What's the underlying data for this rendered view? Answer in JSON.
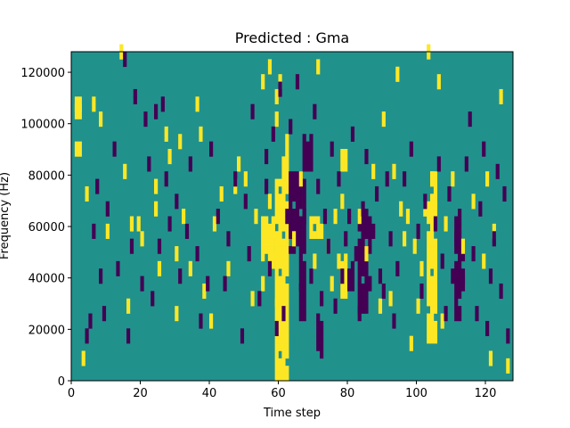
{
  "chart_data": {
    "type": "heatmap",
    "title": "Predicted : Gma",
    "xlabel": "Time step",
    "ylabel": "Frequency (Hz)",
    "xlim": [
      0,
      128
    ],
    "ylim": [
      0,
      128000
    ],
    "x_ticks": [
      0,
      20,
      40,
      60,
      80,
      100,
      120
    ],
    "y_ticks": [
      0,
      20000,
      40000,
      60000,
      80000,
      100000,
      120000
    ],
    "grid": false,
    "legend": "none",
    "n_time_steps": 128,
    "n_freq_bins": 44,
    "colors": {
      "background": "#21918c",
      "low": "#440154",
      "high": "#fde725"
    },
    "cells": {
      "high": [
        [
          1,
          31
        ],
        [
          2,
          31
        ],
        [
          1,
          36
        ],
        [
          2,
          36
        ],
        [
          1,
          37
        ],
        [
          2,
          37
        ],
        [
          3,
          3
        ],
        [
          4,
          25
        ],
        [
          6,
          37
        ],
        [
          8,
          35
        ],
        [
          10,
          20
        ],
        [
          14,
          44
        ],
        [
          15,
          28
        ],
        [
          16,
          10
        ],
        [
          17,
          21
        ],
        [
          19,
          21
        ],
        [
          20,
          19
        ],
        [
          24,
          26
        ],
        [
          24,
          23
        ],
        [
          25,
          15
        ],
        [
          27,
          33
        ],
        [
          28,
          30
        ],
        [
          30,
          9
        ],
        [
          30,
          17
        ],
        [
          31,
          32
        ],
        [
          32,
          22
        ],
        [
          34,
          15
        ],
        [
          36,
          37
        ],
        [
          37,
          33
        ],
        [
          38,
          12
        ],
        [
          40,
          8
        ],
        [
          41,
          21
        ],
        [
          43,
          25
        ],
        [
          45,
          15
        ],
        [
          47,
          26
        ],
        [
          48,
          29
        ],
        [
          50,
          27
        ],
        [
          52,
          11
        ],
        [
          53,
          22
        ],
        [
          55,
          13
        ],
        [
          55,
          40
        ],
        [
          56,
          21
        ],
        [
          57,
          24
        ],
        [
          57,
          42
        ],
        [
          58,
          20
        ],
        [
          58,
          16
        ],
        [
          59,
          10
        ],
        [
          59,
          35
        ],
        [
          59,
          38
        ],
        [
          60,
          16
        ],
        [
          60,
          40
        ],
        [
          62,
          32
        ],
        [
          64,
          19
        ],
        [
          66,
          27
        ],
        [
          70,
          16
        ],
        [
          71,
          42
        ],
        [
          72,
          20
        ],
        [
          74,
          18
        ],
        [
          75,
          13
        ],
        [
          76,
          22
        ],
        [
          77,
          16
        ],
        [
          78,
          24
        ],
        [
          83,
          22
        ],
        [
          85,
          17
        ],
        [
          87,
          28
        ],
        [
          89,
          10
        ],
        [
          90,
          35
        ],
        [
          92,
          11
        ],
        [
          93,
          28
        ],
        [
          94,
          41
        ],
        [
          95,
          23
        ],
        [
          96,
          19
        ],
        [
          97,
          22
        ],
        [
          98,
          5
        ],
        [
          99,
          18
        ],
        [
          100,
          10
        ],
        [
          101,
          15
        ],
        [
          102,
          23
        ],
        [
          103,
          44
        ],
        [
          104,
          27
        ],
        [
          106,
          40
        ],
        [
          107,
          8
        ],
        [
          108,
          21
        ],
        [
          110,
          27
        ],
        [
          113,
          18
        ],
        [
          116,
          24
        ],
        [
          119,
          16
        ],
        [
          120,
          27
        ],
        [
          121,
          3
        ],
        [
          122,
          20
        ],
        [
          124,
          38
        ],
        [
          126,
          2
        ]
      ],
      "low": [
        [
          4,
          6
        ],
        [
          5,
          8
        ],
        [
          6,
          20
        ],
        [
          7,
          26
        ],
        [
          8,
          14
        ],
        [
          9,
          9
        ],
        [
          10,
          23
        ],
        [
          12,
          31
        ],
        [
          13,
          15
        ],
        [
          15,
          43
        ],
        [
          16,
          6
        ],
        [
          17,
          18
        ],
        [
          18,
          38
        ],
        [
          20,
          13
        ],
        [
          21,
          35
        ],
        [
          22,
          29
        ],
        [
          23,
          11
        ],
        [
          24,
          36
        ],
        [
          25,
          18
        ],
        [
          26,
          37
        ],
        [
          27,
          27
        ],
        [
          28,
          21
        ],
        [
          30,
          24
        ],
        [
          31,
          14
        ],
        [
          33,
          20
        ],
        [
          34,
          29
        ],
        [
          36,
          17
        ],
        [
          37,
          8
        ],
        [
          39,
          13
        ],
        [
          40,
          31
        ],
        [
          42,
          22
        ],
        [
          44,
          13
        ],
        [
          45,
          19
        ],
        [
          47,
          27
        ],
        [
          49,
          6
        ],
        [
          50,
          24
        ],
        [
          51,
          17
        ],
        [
          52,
          36
        ],
        [
          54,
          11
        ],
        [
          56,
          26
        ],
        [
          56,
          30
        ],
        [
          57,
          15
        ],
        [
          58,
          33
        ],
        [
          59,
          7
        ],
        [
          60,
          39
        ],
        [
          61,
          9
        ],
        [
          62,
          22
        ],
        [
          63,
          34
        ],
        [
          64,
          26
        ],
        [
          65,
          40
        ],
        [
          66,
          12
        ],
        [
          67,
          22
        ],
        [
          68,
          30
        ],
        [
          69,
          14
        ],
        [
          70,
          36
        ],
        [
          71,
          26
        ],
        [
          72,
          11
        ],
        [
          73,
          22
        ],
        [
          74,
          18
        ],
        [
          75,
          31
        ],
        [
          76,
          10
        ],
        [
          77,
          27
        ],
        [
          78,
          14
        ],
        [
          79,
          19
        ],
        [
          80,
          22
        ],
        [
          81,
          33
        ],
        [
          82,
          17
        ],
        [
          83,
          9
        ],
        [
          84,
          23
        ],
        [
          85,
          30
        ],
        [
          86,
          13
        ],
        [
          87,
          20
        ],
        [
          88,
          25
        ],
        [
          89,
          14
        ],
        [
          90,
          12
        ],
        [
          91,
          27
        ],
        [
          92,
          19
        ],
        [
          93,
          8
        ],
        [
          94,
          15
        ],
        [
          96,
          27
        ],
        [
          98,
          31
        ],
        [
          100,
          20
        ],
        [
          101,
          12
        ],
        [
          102,
          24
        ],
        [
          105,
          21
        ],
        [
          106,
          29
        ],
        [
          107,
          16
        ],
        [
          108,
          9
        ],
        [
          109,
          25
        ],
        [
          110,
          14
        ],
        [
          111,
          19
        ],
        [
          112,
          22
        ],
        [
          113,
          13
        ],
        [
          114,
          29
        ],
        [
          115,
          35
        ],
        [
          116,
          17
        ],
        [
          117,
          9
        ],
        [
          118,
          23
        ],
        [
          119,
          31
        ],
        [
          120,
          7
        ],
        [
          121,
          14
        ],
        [
          122,
          19
        ],
        [
          123,
          28
        ],
        [
          124,
          12
        ],
        [
          125,
          25
        ],
        [
          126,
          6
        ]
      ],
      "high_runs": [
        {
          "x": [
            59,
            63
          ],
          "y": [
            0,
            27
          ]
        },
        {
          "x": [
            61,
            63
          ],
          "y": [
            26,
            31
          ]
        },
        {
          "x": [
            55,
            59
          ],
          "y": [
            16,
            22
          ]
        },
        {
          "x": [
            103,
            106
          ],
          "y": [
            5,
            24
          ]
        },
        {
          "x": [
            104,
            106
          ],
          "y": [
            23,
            28
          ]
        },
        {
          "x": [
            78,
            80
          ],
          "y": [
            11,
            17
          ]
        },
        {
          "x": [
            69,
            72
          ],
          "y": [
            19,
            22
          ]
        },
        {
          "x": [
            78,
            80
          ],
          "y": [
            28,
            31
          ]
        }
      ],
      "low_runs": [
        {
          "x": [
            63,
            68
          ],
          "y": [
            17,
            28
          ]
        },
        {
          "x": [
            66,
            68
          ],
          "y": [
            8,
            17
          ]
        },
        {
          "x": [
            67,
            70
          ],
          "y": [
            28,
            33
          ]
        },
        {
          "x": [
            83,
            86
          ],
          "y": [
            9,
            23
          ]
        },
        {
          "x": [
            80,
            82
          ],
          "y": [
            12,
            16
          ]
        },
        {
          "x": [
            111,
            113
          ],
          "y": [
            8,
            22
          ]
        },
        {
          "x": [
            113,
            114
          ],
          "y": [
            13,
            17
          ]
        },
        {
          "x": [
            71,
            73
          ],
          "y": [
            3,
            9
          ]
        },
        {
          "x": [
            85,
            87
          ],
          "y": [
            17,
            22
          ]
        }
      ]
    }
  }
}
